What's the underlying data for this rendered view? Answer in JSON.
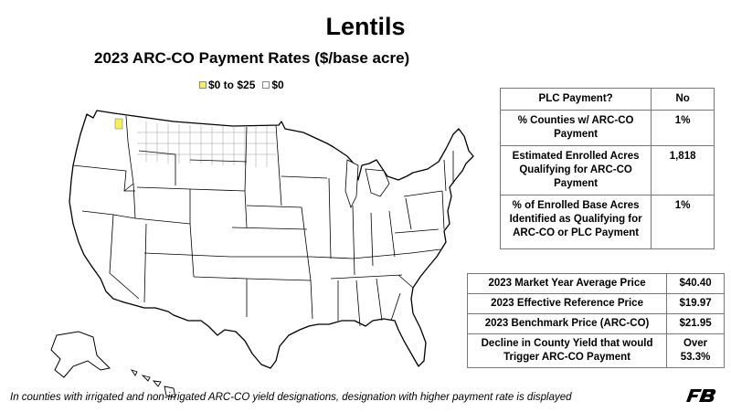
{
  "title": "Lentils",
  "subtitle": "2023 ARC-CO Payment Rates ($/base acre)",
  "legend": [
    {
      "label": "$0 to $25",
      "color": "#f4ef5a"
    },
    {
      "label": "$0",
      "color": "#ffffff"
    }
  ],
  "summary_table": [
    {
      "label": "PLC Payment?",
      "value": "No"
    },
    {
      "label": "% Counties w/ ARC-CO Payment",
      "value": "1%"
    },
    {
      "label": "Estimated Enrolled Acres Qualifying for ARC-CO Payment",
      "value": "1,818"
    },
    {
      "label": "% of Enrolled Base Acres Identified as Qualifying for ARC-CO or PLC Payment",
      "value": "1%"
    }
  ],
  "price_table": [
    {
      "label": "2023 Market Year Average Price",
      "value": "$40.40"
    },
    {
      "label": "2023 Effective Reference Price",
      "value": "$19.97"
    },
    {
      "label": "2023 Benchmark Price (ARC-CO)",
      "value": "$21.95"
    },
    {
      "label": "Decline in County Yield that would Trigger ARC-CO Payment",
      "value": "Over 53.3%"
    }
  ],
  "footnote": "In counties with irrigated and non-irrigated ARC-CO yield designations, designation with higher payment rate is displayed",
  "colors": {
    "payment_county": "#f4ef5a",
    "county_border": "#9a9a9a",
    "state_border": "#000000",
    "logo": "#000000"
  },
  "icons": {
    "logo": "farm-bureau-logo"
  }
}
